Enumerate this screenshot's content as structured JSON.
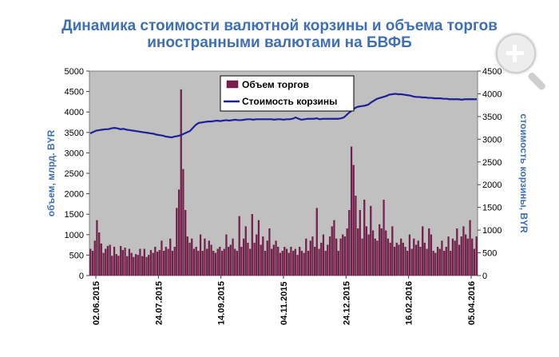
{
  "title_line1": "Динамика стоимости валютной корзины и объема торгов",
  "title_line2": "иностранными валютами на БВФБ",
  "zoom_icon": "zoom-in-magnifier-icon",
  "colors": {
    "title": "#3f6fb5",
    "plot_bg": "#c0c0c0",
    "bars": "#7a1f4d",
    "bars_edge": "#4a0f2c",
    "line": "#1f1f99",
    "axis_label": "#3f6fb5"
  },
  "chart_data": {
    "type": "bar+line",
    "left_axis": {
      "label": "объем, млрд. BYR",
      "ylim": [
        0,
        5000
      ],
      "ticks": [
        "0",
        "500",
        "1000",
        "1500",
        "2000",
        "2500",
        "3000",
        "3500",
        "4000",
        "4500",
        "5000"
      ]
    },
    "right_axis": {
      "label": "стоимость корзины, BYR",
      "ylim": [
        0,
        4500
      ],
      "ticks": [
        "0",
        "500",
        "1000",
        "1500",
        "2000",
        "2500",
        "3000",
        "3500",
        "4000",
        "4500"
      ]
    },
    "x_tick_labels": [
      "02.06.2015",
      "24.07.2015",
      "14.09.2015",
      "04.11.2015",
      "24.12.2015",
      "16.02.2016",
      "05.04.2016"
    ],
    "grid": false,
    "legend_position": "top-center",
    "series": [
      {
        "name": "Объем торгов",
        "type": "bar",
        "axis": "left",
        "values": [
          650,
          600,
          850,
          1350,
          1050,
          780,
          550,
          650,
          720,
          750,
          480,
          700,
          520,
          480,
          720,
          620,
          680,
          470,
          650,
          550,
          450,
          520,
          500,
          650,
          470,
          650,
          450,
          500,
          620,
          550,
          700,
          580,
          620,
          850,
          600,
          700,
          650,
          900,
          600,
          700,
          1650,
          2100,
          4550,
          2600,
          1600,
          950,
          800,
          900,
          650,
          700,
          600,
          1000,
          600,
          900,
          650,
          850,
          750,
          600,
          550,
          650,
          700,
          600,
          650,
          1000,
          700,
          750,
          900,
          650,
          600,
          1450,
          700,
          900,
          1200,
          800,
          650,
          1500,
          800,
          1000,
          1350,
          750,
          950,
          600,
          850,
          1150,
          650,
          750,
          850,
          700,
          550,
          600,
          700,
          650,
          550,
          700,
          600,
          650,
          500,
          700,
          600,
          550,
          900,
          600,
          850,
          950,
          700,
          1650,
          650,
          800,
          1000,
          600,
          750,
          950,
          1200,
          1350,
          900,
          600,
          900,
          1000,
          950,
          1150,
          1600,
          3150,
          2700,
          1950,
          1150,
          1600,
          900,
          1850,
          1200,
          1000,
          1700,
          1100,
          900,
          850,
          1250,
          1150,
          1850,
          1100,
          900,
          800,
          1200,
          700,
          800,
          750,
          900,
          800,
          700,
          600,
          1000,
          650,
          900,
          750,
          850,
          700,
          1200,
          800,
          650,
          1150,
          1000,
          600,
          550,
          700,
          650,
          850,
          600,
          700,
          950,
          600,
          900,
          850,
          1150,
          750,
          950,
          1200,
          1000,
          900,
          1350,
          900,
          650,
          950
        ]
      },
      {
        "name": "Стоимость корзины",
        "type": "line",
        "axis": "right",
        "values": [
          3130,
          3160,
          3190,
          3200,
          3210,
          3220,
          3220,
          3240,
          3250,
          3240,
          3220,
          3230,
          3210,
          3200,
          3190,
          3180,
          3170,
          3160,
          3150,
          3140,
          3130,
          3120,
          3100,
          3090,
          3080,
          3060,
          3050,
          3040,
          3060,
          3070,
          3090,
          3120,
          3150,
          3180,
          3250,
          3320,
          3360,
          3370,
          3380,
          3390,
          3390,
          3400,
          3410,
          3400,
          3410,
          3420,
          3410,
          3420,
          3430,
          3420,
          3420,
          3430,
          3440,
          3440,
          3430,
          3440,
          3440,
          3440,
          3440,
          3440,
          3440,
          3430,
          3440,
          3440,
          3430,
          3440,
          3440,
          3450,
          3480,
          3450,
          3430,
          3440,
          3450,
          3450,
          3450,
          3460,
          3440,
          3450,
          3450,
          3450,
          3450,
          3450,
          3450,
          3460,
          3480,
          3540,
          3600,
          3650,
          3700,
          3720,
          3730,
          3740,
          3760,
          3810,
          3850,
          3890,
          3910,
          3930,
          3950,
          3980,
          3990,
          4000,
          3990,
          3990,
          3980,
          3970,
          3960,
          3940,
          3930,
          3930,
          3920,
          3920,
          3910,
          3910,
          3900,
          3900,
          3900,
          3890,
          3890,
          3880,
          3880,
          3880,
          3880,
          3870,
          3880,
          3880,
          3880,
          3880,
          3880
        ]
      }
    ]
  }
}
